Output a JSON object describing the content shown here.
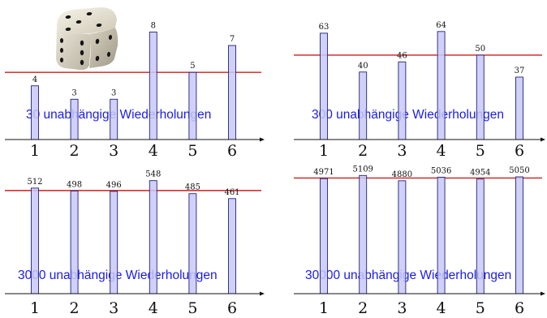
{
  "colors": {
    "bar_fill": "#c8c8f8",
    "bar_stroke": "#22227a",
    "expected_line": "#cc1f1f",
    "caption": "#1a1aee",
    "axis": "#111111"
  },
  "die_image_icon": "dice-icon",
  "chart_data": [
    {
      "type": "bar",
      "categories": [
        "1",
        "2",
        "3",
        "4",
        "5",
        "6"
      ],
      "values": [
        4,
        3,
        3,
        8,
        5,
        7
      ],
      "value_labels": [
        "4",
        "3",
        "3",
        "8",
        "5",
        "7"
      ],
      "expected_line": 5,
      "ylim": [
        0,
        9.3
      ],
      "caption_number": "30",
      "caption_text": " unabhängige Wiederholungen"
    },
    {
      "type": "bar",
      "categories": [
        "1",
        "2",
        "3",
        "4",
        "5",
        "6"
      ],
      "values": [
        63,
        40,
        46,
        64,
        50,
        37
      ],
      "value_labels": [
        "63",
        "40",
        "46",
        "64",
        "50",
        "37"
      ],
      "expected_line": 50,
      "ylim": [
        0,
        74
      ],
      "caption_number": "300",
      "caption_text": " unabhängige Wiederholungen"
    },
    {
      "type": "bar",
      "categories": [
        "1",
        "2",
        "3",
        "4",
        "5",
        "6"
      ],
      "values": [
        512,
        498,
        496,
        548,
        485,
        461
      ],
      "value_labels": [
        "512",
        "498",
        "496",
        "548",
        "485",
        "461"
      ],
      "expected_line": 500,
      "ylim": [
        0,
        590
      ],
      "caption_number": "3000",
      "caption_text": " unabhängige Wiederholungen"
    },
    {
      "type": "bar",
      "categories": [
        "1",
        "2",
        "3",
        "4",
        "5",
        "6"
      ],
      "values": [
        4971,
        5109,
        4880,
        5036,
        4954,
        5050
      ],
      "value_labels": [
        "4971",
        "5109",
        "4880",
        "5036",
        "4954",
        "5050"
      ],
      "expected_line": 5000,
      "ylim": [
        0,
        5260
      ],
      "caption_number": "30000",
      "caption_text": " unabhängige Wiederholungen"
    }
  ]
}
